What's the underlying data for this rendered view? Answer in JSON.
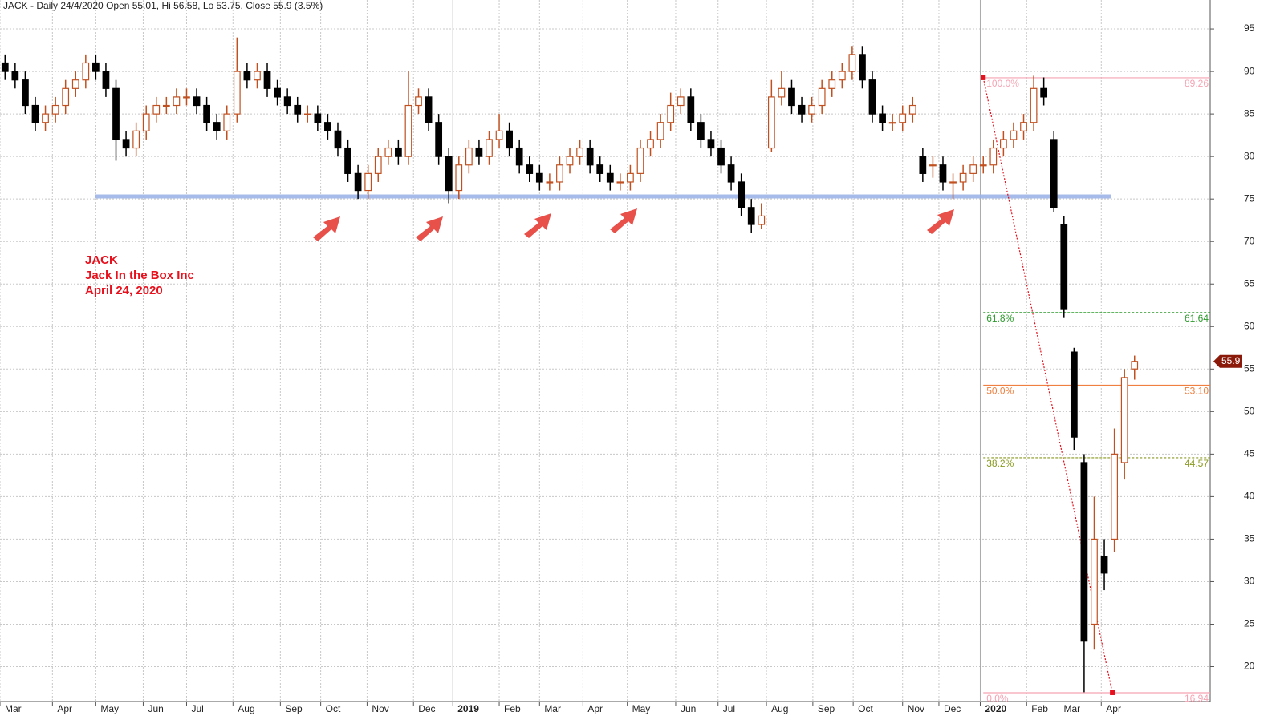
{
  "chart_data": {
    "type": "candlestick",
    "title": "JACK - Daily 24/4/2020 Open 55.01, Hi 56.58, Lo 53.75, Close 55.9 (3.5%)",
    "annotations": [
      "JACK",
      "Jack In the Box Inc",
      "April 24, 2020"
    ],
    "categories": [
      null,
      null,
      null,
      null,
      null,
      null,
      null,
      null,
      null,
      null,
      null,
      null,
      null,
      null,
      null,
      null,
      null,
      null,
      null,
      null,
      null,
      null,
      null,
      null,
      null,
      null,
      null,
      null,
      null,
      null,
      null,
      null,
      null,
      null,
      null,
      null,
      null,
      null,
      null,
      null,
      null,
      null,
      null,
      null,
      null,
      null,
      null,
      null,
      null,
      null,
      null,
      null,
      null,
      null,
      null,
      null,
      null,
      null,
      null,
      null,
      null,
      null,
      null,
      null,
      null,
      null,
      null,
      null,
      null,
      null,
      null,
      null,
      null,
      null,
      null,
      null,
      null,
      null,
      null,
      null,
      null,
      null,
      null,
      null,
      null,
      null,
      null,
      null,
      null,
      null,
      null,
      null,
      null,
      null,
      null,
      null,
      null,
      null,
      null,
      null,
      null,
      null,
      null,
      null,
      null,
      null,
      null,
      null,
      null,
      null,
      null,
      null,
      null
    ],
    "open": [
      91,
      90,
      89,
      86,
      84,
      85,
      86,
      88,
      89,
      91,
      90,
      88,
      82,
      81,
      83,
      85,
      86,
      86,
      87,
      87,
      86,
      84,
      83,
      85,
      90,
      89,
      90,
      88,
      87,
      86,
      85,
      85,
      84,
      83,
      81,
      78,
      76,
      78,
      80,
      81,
      80,
      86,
      87,
      84,
      80,
      76,
      79,
      81,
      80,
      82,
      83,
      81,
      79,
      78,
      77,
      77,
      79,
      80,
      81,
      79,
      78,
      77,
      77,
      78,
      81,
      82,
      84,
      86,
      87,
      84,
      82,
      81,
      79,
      77,
      74,
      72,
      81,
      87,
      88,
      86,
      85,
      86,
      88,
      89,
      90,
      92,
      89,
      85,
      84,
      84,
      85,
      80,
      79,
      79,
      77,
      77,
      78,
      79,
      79,
      81,
      82,
      83,
      84,
      88,
      82,
      72,
      57,
      44,
      25,
      33,
      35,
      44,
      55.01
    ],
    "high": [
      92,
      91,
      90,
      87,
      86,
      87,
      89,
      90,
      92,
      92,
      91,
      89,
      83,
      84,
      86,
      87,
      87,
      88,
      88,
      88,
      87,
      85,
      86,
      94,
      91,
      91,
      91,
      89,
      88,
      87,
      86,
      86,
      85,
      84,
      82,
      79,
      79,
      81,
      82,
      82,
      90,
      88,
      88,
      85,
      81,
      80,
      82,
      82,
      83,
      85,
      84,
      82,
      80,
      79,
      78,
      80,
      81,
      82,
      82,
      80,
      79,
      78,
      79,
      82,
      83,
      85,
      87.5,
      88,
      88,
      85,
      83,
      82,
      80,
      78,
      75,
      74.5,
      89,
      90,
      89,
      87,
      87,
      89,
      90,
      91,
      93,
      93,
      90,
      86,
      85,
      86,
      87,
      81,
      80,
      80,
      78,
      79,
      80,
      80,
      82,
      83,
      84,
      85,
      89.5,
      89.3,
      83,
      73,
      57.5,
      45,
      40,
      35,
      48,
      55,
      56.58
    ],
    "low": [
      89,
      88,
      85,
      83,
      83,
      84,
      85,
      87,
      88,
      89,
      87,
      79.5,
      80,
      80,
      82,
      84,
      85,
      85,
      86,
      85,
      83,
      82,
      82,
      84,
      88,
      88,
      87,
      86,
      85,
      84,
      84,
      83,
      82,
      80,
      77,
      75,
      75,
      77,
      79,
      79,
      79,
      85,
      83,
      79,
      74.5,
      75,
      78,
      79,
      79,
      81,
      80,
      78,
      77,
      76,
      76,
      76,
      78,
      79,
      78,
      77,
      76,
      76,
      76,
      77,
      80,
      81,
      83,
      85,
      83,
      81,
      80,
      78,
      76,
      73,
      71,
      71.5,
      80.5,
      86,
      85,
      84,
      84,
      85,
      87,
      88,
      89,
      88,
      84,
      83,
      83,
      83,
      84,
      77,
      77.5,
      76,
      75,
      76,
      77,
      78,
      78,
      80,
      81,
      82,
      83,
      86,
      73.5,
      61,
      45.5,
      17,
      22,
      29,
      33.5,
      42,
      53.75
    ],
    "close": [
      90,
      89,
      86,
      84,
      85,
      86,
      88,
      89,
      91,
      90,
      88,
      82,
      81,
      83,
      85,
      86,
      86,
      87,
      87,
      86,
      84,
      83,
      85,
      90,
      89,
      90,
      88,
      87,
      86,
      85,
      85,
      84,
      83,
      81,
      78,
      76,
      78,
      80,
      81,
      80,
      86,
      87,
      84,
      80,
      76,
      79,
      81,
      80,
      82,
      83,
      81,
      79,
      78,
      77,
      77,
      79,
      80,
      81,
      79,
      78,
      77,
      77,
      78,
      81,
      82,
      84,
      86,
      87,
      84,
      82,
      81,
      79,
      77,
      74,
      72,
      73,
      87,
      88,
      86,
      85,
      86,
      88,
      89,
      90,
      92,
      89,
      85,
      84,
      84,
      85,
      86,
      78,
      79,
      77,
      77,
      78,
      79,
      79,
      81,
      82,
      83,
      84,
      88,
      87,
      74,
      62,
      47,
      23,
      35,
      31,
      45,
      54,
      55.9
    ],
    "up_color": "#c0501f",
    "down_color": "#000000",
    "xlim": [
      -0.5,
      119.5
    ],
    "xticks": [
      {
        "value": -0.5,
        "label": "Mar"
      },
      {
        "value": 4.7,
        "label": "Apr"
      },
      {
        "value": 9.0,
        "label": "May"
      },
      {
        "value": 13.7,
        "label": "Jun"
      },
      {
        "value": 18.0,
        "label": "Jul"
      },
      {
        "value": 22.6,
        "label": "Aug"
      },
      {
        "value": 27.3,
        "label": "Sep"
      },
      {
        "value": 31.3,
        "label": "Oct"
      },
      {
        "value": 35.9,
        "label": "Nov"
      },
      {
        "value": 40.5,
        "label": "Dec"
      },
      {
        "value": 44.4,
        "label": "2019"
      },
      {
        "value": 49.0,
        "label": "Feb"
      },
      {
        "value": 53.0,
        "label": "Mar"
      },
      {
        "value": 57.3,
        "label": "Apr"
      },
      {
        "value": 61.7,
        "label": "May"
      },
      {
        "value": 66.5,
        "label": "Jun"
      },
      {
        "value": 70.7,
        "label": "Jul"
      },
      {
        "value": 75.5,
        "label": "Aug"
      },
      {
        "value": 80.1,
        "label": "Sep"
      },
      {
        "value": 84.1,
        "label": "Oct"
      },
      {
        "value": 89.0,
        "label": "Nov"
      },
      {
        "value": 92.6,
        "label": "Dec"
      },
      {
        "value": 96.7,
        "label": "2020"
      },
      {
        "value": 101.3,
        "label": "Feb"
      },
      {
        "value": 104.5,
        "label": "Mar"
      },
      {
        "value": 108.7,
        "label": "Apr"
      }
    ],
    "year_ticks": [
      "2019",
      "2020"
    ],
    "ylim": [
      15.9,
      98.4
    ],
    "yticks": [
      20,
      25,
      30,
      35,
      40,
      45,
      50,
      55,
      60,
      65,
      70,
      75,
      80,
      85,
      90,
      95
    ],
    "grid": true,
    "last_price": 55.9,
    "last_price_color": "#8b1a0a",
    "support_line": {
      "value": 75.3,
      "x_range": [
        8.9,
        109.7
      ],
      "color": "#9db4e8"
    },
    "fibonacci": {
      "from": {
        "x": 97,
        "y": 89.26
      },
      "to": {
        "x": 109.8,
        "y": 16.94
      },
      "line_color": "#e8101c",
      "levels": [
        {
          "name": "100.0%",
          "value": 89.26,
          "color": "#f5a3b3",
          "dashed": false
        },
        {
          "name": "61.8%",
          "value": 61.64,
          "color": "#2e9b2e",
          "dashed": true
        },
        {
          "name": "50.0%",
          "value": 53.1,
          "value_label": "53.10",
          "color": "#f08040",
          "dashed": false
        },
        {
          "name": "38.2%",
          "value": 44.57,
          "color": "#8a9a20",
          "dashed": true
        },
        {
          "name": "0.0%",
          "value": 16.94,
          "color": "#f5a3b3",
          "dashed": false
        }
      ]
    }
  }
}
